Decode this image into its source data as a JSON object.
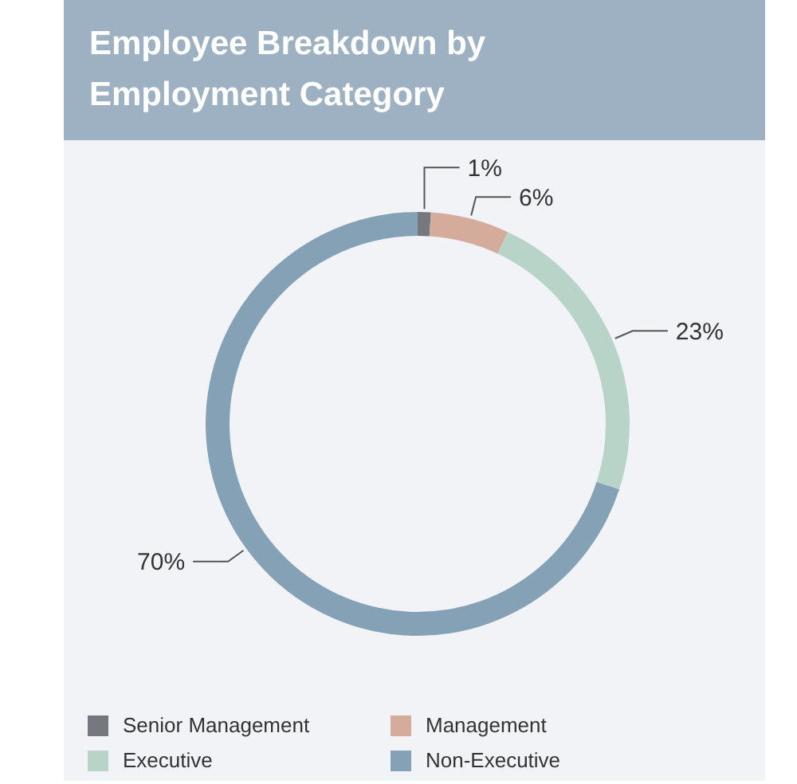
{
  "chart_data": {
    "type": "donut",
    "title": "Employee Breakdown by Employment Category",
    "categories": [
      "Senior Management",
      "Management",
      "Executive",
      "Non-Executive"
    ],
    "values": [
      1,
      6,
      23,
      70
    ],
    "colors": [
      "#75787f",
      "#d5ac9b",
      "#b8d4c8",
      "#84a1b6"
    ],
    "value_labels": [
      "1%",
      "6%",
      "23%",
      "70%"
    ],
    "legend": "bottom"
  }
}
